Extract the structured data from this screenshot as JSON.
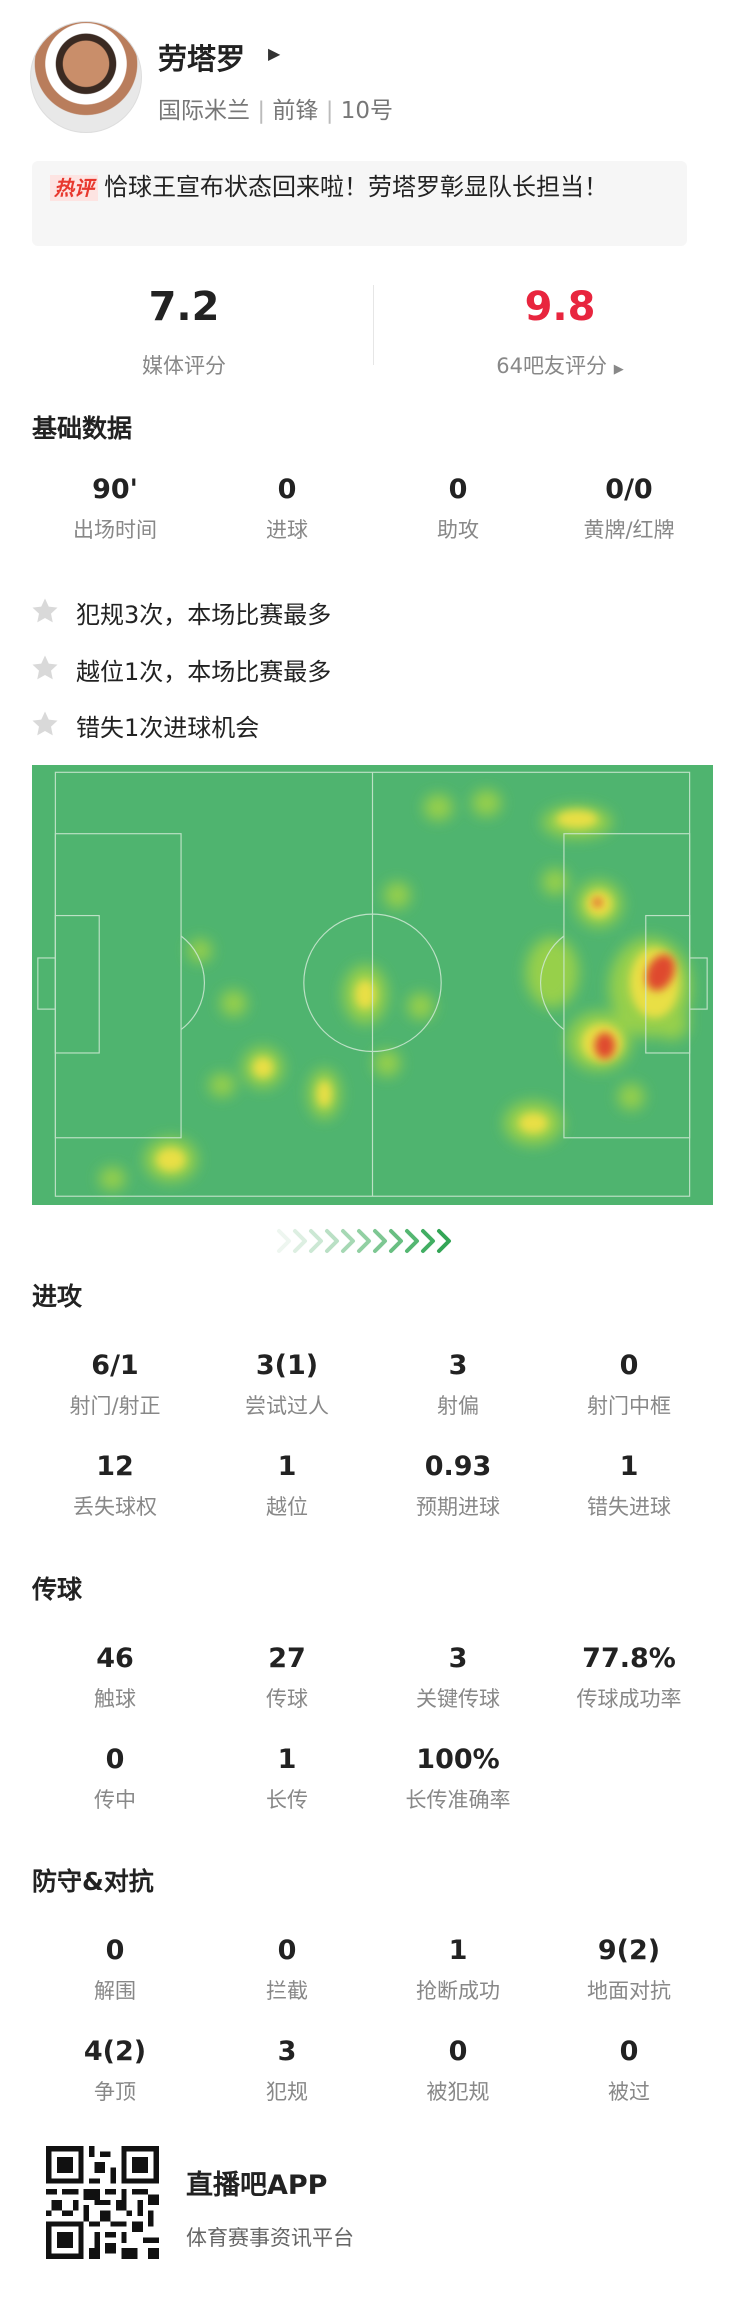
{
  "player": {
    "name": "劳塔罗",
    "team": "国际米兰",
    "position": "前锋",
    "number": "10号"
  },
  "headline": {
    "tag": "热评",
    "text": "恰球王宣布状态回来啦！劳塔罗彰显队长担当！"
  },
  "ratings": {
    "media": {
      "value": 7.2,
      "label": "媒体评分"
    },
    "fans": {
      "value": 9.8,
      "label": "64吧友评分"
    }
  },
  "basic": {
    "title": "基础数据",
    "stats": [
      {
        "value": "90'",
        "label": "出场时间"
      },
      {
        "value": 0,
        "label": "进球"
      },
      {
        "value": 0,
        "label": "助攻"
      },
      {
        "value": "0/0",
        "label": "黄牌/红牌"
      }
    ]
  },
  "notes": [
    "犯规3次，本场比赛最多",
    "越位1次，本场比赛最多",
    "错失1次进球机会"
  ],
  "sections": [
    {
      "title": "进攻",
      "stats": [
        {
          "value": "6/1",
          "label": "射门/射正"
        },
        {
          "value": "3(1)",
          "label": "尝试过人"
        },
        {
          "value": 3,
          "label": "射偏"
        },
        {
          "value": 0,
          "label": "射门中框"
        },
        {
          "value": 12,
          "label": "丢失球权"
        },
        {
          "value": 1,
          "label": "越位"
        },
        {
          "value": 0.93,
          "label": "预期进球"
        },
        {
          "value": 1,
          "label": "错失进球"
        }
      ]
    },
    {
      "title": "传球",
      "stats": [
        {
          "value": 46,
          "label": "触球"
        },
        {
          "value": 27,
          "label": "传球"
        },
        {
          "value": 3,
          "label": "关键传球"
        },
        {
          "value": "77.8%",
          "label": "传球成功率"
        },
        {
          "value": 0,
          "label": "传中"
        },
        {
          "value": 1,
          "label": "长传"
        },
        {
          "value": "100%",
          "label": "长传准确率"
        }
      ]
    },
    {
      "title": "防守&对抗",
      "stats": [
        {
          "value": 0,
          "label": "解围"
        },
        {
          "value": 0,
          "label": "拦截"
        },
        {
          "value": 1,
          "label": "抢断成功"
        },
        {
          "value": "9(2)",
          "label": "地面对抗"
        },
        {
          "value": "4(2)",
          "label": "争顶"
        },
        {
          "value": 3,
          "label": "犯规"
        },
        {
          "value": 0,
          "label": "被犯规"
        },
        {
          "value": 0,
          "label": "被过"
        }
      ]
    }
  ],
  "footer": {
    "app": "直播吧APP",
    "slogan": "体育赛事资讯平台"
  }
}
